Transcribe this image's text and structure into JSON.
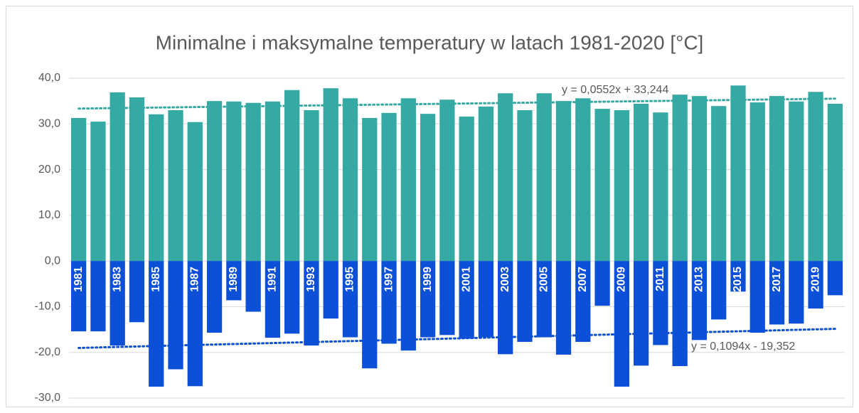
{
  "chart_data": {
    "type": "bar",
    "title": "Minimalne i maksymalne temperatury w latach 1981-2020 [°C]",
    "categories": [
      "1981",
      null,
      "1983",
      null,
      "1985",
      null,
      "1987",
      null,
      "1989",
      null,
      "1991",
      null,
      "1993",
      null,
      "1995",
      null,
      "1997",
      null,
      "1999",
      null,
      "2001",
      null,
      "2003",
      null,
      "2005",
      null,
      "2007",
      null,
      "2009",
      null,
      "2011",
      null,
      "2013",
      null,
      "2015",
      null,
      "2017",
      null,
      "2019",
      null
    ],
    "series": [
      {
        "color": "#35aaa4",
        "trendline": "y = 0,0552x + 33,244",
        "values": [
          31.3,
          30.5,
          36.9,
          35.8,
          32.1,
          33.0,
          30.4,
          35.0,
          34.9,
          34.6,
          34.9,
          37.4,
          33.0,
          37.8,
          35.6,
          31.3,
          32.4,
          35.6,
          32.2,
          35.3,
          31.6,
          33.8,
          36.7,
          33.0,
          36.7,
          35.0,
          35.6,
          33.3,
          33.0,
          34.4,
          32.5,
          36.4,
          36.1,
          33.9,
          38.4,
          34.7,
          36.1,
          34.9,
          37.0,
          34.4
        ]
      },
      {
        "color": "#0b50d6",
        "trendline": "y = 0,1094x - 19,352",
        "values": [
          -15.4,
          -15.4,
          -18.5,
          -13.4,
          -27.5,
          -23.7,
          -27.4,
          -15.7,
          -8.6,
          -11.1,
          -16.8,
          -15.9,
          -18.5,
          -12.6,
          -16.7,
          -23.5,
          -18.1,
          -19.6,
          -16.7,
          -16.2,
          -17.0,
          -16.7,
          -20.4,
          -17.7,
          -16.7,
          -20.5,
          -17.7,
          -9.8,
          -27.5,
          -22.9,
          -18.4,
          -23.0,
          -17.3,
          -12.8,
          -6.7,
          -15.7,
          -13.9,
          -13.7,
          -10.4,
          -7.5
        ]
      }
    ],
    "ylim": [
      -30,
      40
    ],
    "yticks": [
      {
        "value": -30,
        "label": "-30,0"
      },
      {
        "value": -20,
        "label": "-20,0"
      },
      {
        "value": -10,
        "label": "-10,0"
      },
      {
        "value": 0,
        "label": "0,0"
      },
      {
        "value": 10,
        "label": "10,0"
      },
      {
        "value": 20,
        "label": "20,0"
      },
      {
        "value": 30,
        "label": "30,0"
      },
      {
        "value": 40,
        "label": "40,0"
      }
    ],
    "grid": true
  }
}
